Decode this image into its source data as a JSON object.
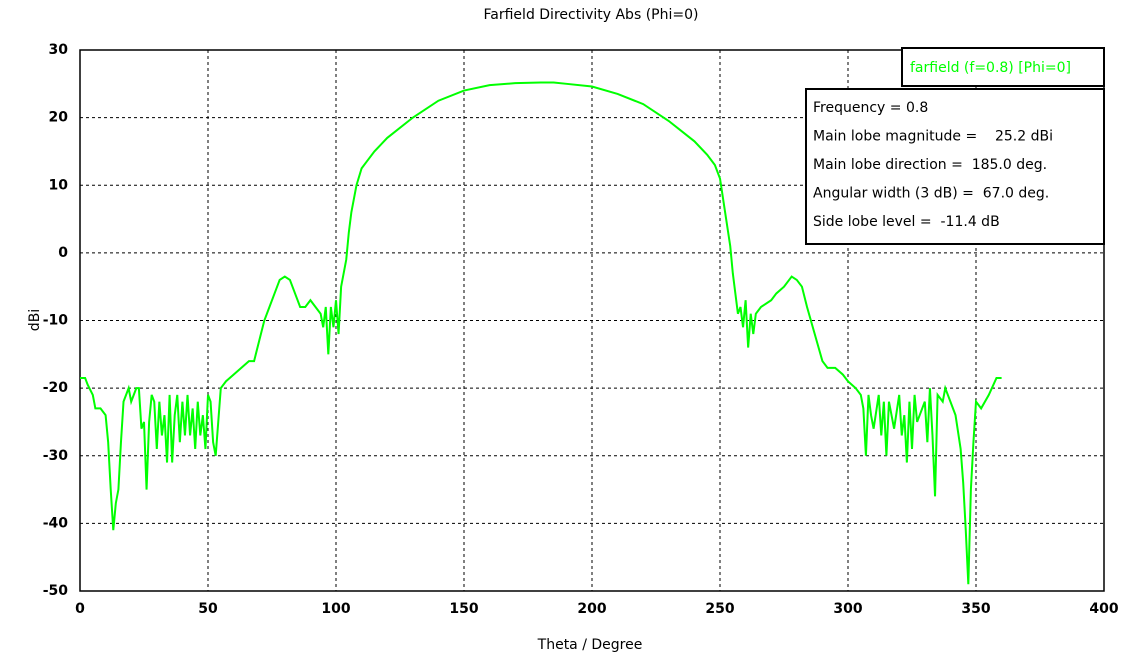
{
  "chart_data": {
    "type": "line",
    "title": "Farfield Directivity Abs (Phi=0)",
    "x_label": "Theta / Degree",
    "y_label": "dBi",
    "x": [
      0,
      2,
      3,
      5,
      6,
      8,
      10,
      11,
      12,
      13,
      14,
      15,
      16,
      17,
      18,
      19,
      20,
      22,
      23,
      24,
      25,
      26,
      27,
      28,
      29,
      30,
      31,
      32,
      33,
      34,
      35,
      36,
      37,
      38,
      39,
      40,
      41,
      42,
      43,
      44,
      45,
      46,
      47,
      48,
      49,
      50,
      51,
      52,
      53,
      54,
      55,
      57,
      60,
      63,
      66,
      68,
      70,
      72,
      74,
      76,
      78,
      80,
      82,
      84,
      86,
      88,
      90,
      92,
      94,
      95,
      96,
      97,
      98,
      99,
      100,
      101,
      102,
      103,
      104,
      105,
      106,
      108,
      110,
      112,
      115,
      120,
      130,
      140,
      150,
      160,
      170,
      180,
      185,
      190,
      200,
      210,
      220,
      230,
      240,
      245,
      248,
      250,
      252,
      254,
      255,
      256,
      257,
      258,
      259,
      260,
      261,
      262,
      263,
      264,
      266,
      270,
      272,
      275,
      278,
      280,
      282,
      284,
      287,
      290,
      292,
      295,
      298,
      300,
      303,
      305,
      306,
      307,
      308,
      309,
      310,
      312,
      313,
      314,
      315,
      316,
      318,
      320,
      321,
      322,
      323,
      324,
      325,
      326,
      327,
      328,
      330,
      331,
      332,
      333,
      334,
      335,
      337,
      338,
      340,
      342,
      344,
      345,
      346,
      347,
      348,
      349,
      350,
      352,
      355,
      358,
      360
    ],
    "series": [
      {
        "name": "farfield (f=0.8) [Phi=0]",
        "color": "#00ff00",
        "values": [
          -18.5,
          -18.5,
          -19.5,
          -21,
          -23,
          -23,
          -24,
          -28,
          -35,
          -41,
          -37,
          -35,
          -28,
          -22,
          -21,
          -20,
          -22,
          -20,
          -20,
          -26,
          -25,
          -35,
          -25,
          -21,
          -22,
          -29,
          -22,
          -27,
          -24,
          -31,
          -21,
          -31,
          -24,
          -21,
          -28,
          -22,
          -27,
          -21,
          -27,
          -23,
          -29,
          -22,
          -27,
          -24,
          -29,
          -21,
          -22,
          -28,
          -30,
          -25,
          -20,
          -19,
          -18,
          -17,
          -16,
          -16,
          -13,
          -10,
          -8,
          -6,
          -4,
          -3.5,
          -4,
          -6,
          -8,
          -8,
          -7,
          -8,
          -9,
          -11,
          -8,
          -15,
          -8,
          -11,
          -7,
          -12,
          -5,
          -3,
          -1,
          3,
          6,
          10,
          12.5,
          13.5,
          15,
          17,
          20,
          22.5,
          24,
          24.8,
          25.1,
          25.2,
          25.2,
          25,
          24.6,
          23.5,
          22,
          19.5,
          16.5,
          14.5,
          13,
          11,
          6,
          1,
          -3,
          -6,
          -9,
          -8,
          -11,
          -7,
          -14,
          -9,
          -12,
          -9,
          -8,
          -7,
          -6,
          -5,
          -3.5,
          -4,
          -5,
          -8,
          -12,
          -16,
          -17,
          -17,
          -18,
          -19,
          -20,
          -21,
          -23,
          -30,
          -21,
          -24,
          -26,
          -21,
          -27,
          -22,
          -30,
          -22,
          -26,
          -21,
          -27,
          -24,
          -31,
          -22,
          -29,
          -21,
          -25,
          -24,
          -22,
          -28,
          -20,
          -27,
          -36,
          -21,
          -22,
          -20,
          -22,
          -24,
          -29,
          -34,
          -41,
          -49,
          -35,
          -28,
          -22,
          -23,
          -21,
          -18.5,
          -18.5
        ]
      }
    ],
    "xlim": [
      0,
      400
    ],
    "ylim": [
      -50,
      30
    ],
    "xticks": [
      0,
      50,
      100,
      150,
      200,
      250,
      300,
      350,
      400
    ],
    "yticks": [
      -50,
      -40,
      -30,
      -20,
      -10,
      0,
      10,
      20,
      30
    ],
    "grid": true,
    "annotations": [
      "Frequency = 0.8",
      "Main lobe magnitude =    25.2 dBi",
      "Main lobe direction =  185.0 deg.",
      "Angular width (3 dB) =  67.0 deg.",
      "Side lobe level =  -11.4 dB"
    ]
  }
}
